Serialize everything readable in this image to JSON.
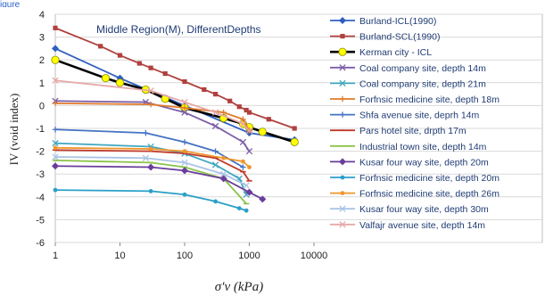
{
  "caption_fragment": "igure",
  "chart_data": {
    "type": "line",
    "title": "Middle Region(M), DifferentDepths",
    "xlabel": "σ′v (kPa)",
    "ylabel": "IV (void index)",
    "x_scale": "log",
    "xlim": [
      1,
      10000
    ],
    "ylim": [
      -6,
      4
    ],
    "x_ticks": [
      "1",
      "10",
      "100",
      "1000",
      "10000"
    ],
    "y_ticks": [
      "4",
      "3",
      "2",
      "1",
      "0",
      "-1",
      "-2",
      "-3",
      "-4",
      "-5",
      "-6"
    ],
    "grid": "horizontal",
    "legend_position": "right",
    "series": [
      {
        "name": "Burland-ICL(1990)",
        "color": "#2f5fbf",
        "marker": "diamond",
        "x": [
          1,
          10,
          100,
          1000,
          5000
        ],
        "y": [
          2.5,
          1.2,
          0.0,
          -1.2,
          -1.5
        ]
      },
      {
        "name": "Burland-SCL(1990)",
        "color": "#b0413e",
        "marker": "square",
        "x": [
          1,
          5,
          10,
          20,
          30,
          50,
          100,
          200,
          300,
          500,
          700,
          900,
          1000,
          2000,
          5000
        ],
        "y": [
          3.4,
          2.6,
          2.2,
          1.85,
          1.65,
          1.4,
          1.05,
          0.7,
          0.5,
          0.2,
          -0.05,
          -0.2,
          -0.3,
          -0.6,
          -1.0
        ]
      },
      {
        "name": "Kerman city - ICL",
        "color": "#000000",
        "marker": "circle-yellow",
        "x": [
          1,
          6,
          10,
          25,
          50,
          100,
          400,
          800,
          1000,
          1600,
          5000
        ],
        "y": [
          2.0,
          1.2,
          1.0,
          0.7,
          0.3,
          -0.1,
          -0.55,
          -0.8,
          -0.95,
          -1.15,
          -1.6
        ]
      },
      {
        "name": "Coal company site, depth 14m",
        "color": "#7b5ea7",
        "marker": "x",
        "x": [
          1,
          25,
          100,
          300,
          800,
          1000
        ],
        "y": [
          0.2,
          0.15,
          -0.3,
          -0.9,
          -1.6,
          -2.0
        ]
      },
      {
        "name": "Coal company site, depth 21m",
        "color": "#3fa7c0",
        "marker": "x",
        "x": [
          1,
          30,
          100,
          300,
          700,
          900
        ],
        "y": [
          -1.65,
          -1.8,
          -2.1,
          -2.6,
          -3.2,
          -3.9
        ]
      },
      {
        "name": "Forfnsic medicine site, depth 18m",
        "color": "#e07b2a",
        "marker": "cross",
        "x": [
          1,
          30,
          100,
          400,
          800,
          1000
        ],
        "y": [
          0.1,
          0.05,
          -0.1,
          -0.3,
          -0.6,
          -1.1
        ]
      },
      {
        "name": "Shfa avenue site, deprh 14m",
        "color": "#4472c4",
        "marker": "cross",
        "x": [
          1,
          25,
          100,
          300,
          800
        ],
        "y": [
          -1.05,
          -1.2,
          -1.6,
          -2.0,
          -2.7
        ]
      },
      {
        "name": "Pars hotel site, drpth 17m",
        "color": "#c0392b",
        "marker": "dash",
        "x": [
          1,
          30,
          100,
          300,
          800,
          1000
        ],
        "y": [
          -1.95,
          -2.0,
          -2.1,
          -2.3,
          -2.9,
          -3.3
        ]
      },
      {
        "name": "Industrial town site, depth 14m",
        "color": "#8bc34a",
        "marker": "dash",
        "x": [
          1,
          30,
          100,
          400,
          900
        ],
        "y": [
          -2.4,
          -2.5,
          -2.7,
          -3.2,
          -4.3
        ]
      },
      {
        "name": "Kusar four way site, depth 20m",
        "color": "#6a3d9a",
        "marker": "diamond",
        "x": [
          1,
          30,
          100,
          400,
          1000,
          1600
        ],
        "y": [
          -2.65,
          -2.7,
          -2.85,
          -3.2,
          -3.8,
          -4.1
        ]
      },
      {
        "name": "Forfnsic medicine site, depth 20m",
        "color": "#2a9fc9",
        "marker": "circle",
        "x": [
          1,
          30,
          100,
          300,
          700,
          900
        ],
        "y": [
          -3.7,
          -3.75,
          -3.9,
          -4.2,
          -4.5,
          -4.6
        ]
      },
      {
        "name": "Forfnsic medicine site, depth 26m",
        "color": "#f0962b",
        "marker": "circle",
        "x": [
          1,
          30,
          100,
          400,
          800,
          1000
        ],
        "y": [
          -1.85,
          -1.9,
          -2.0,
          -2.3,
          -2.45,
          -2.7
        ]
      },
      {
        "name": "Kusar four way site, depth 30m",
        "color": "#aac4e6",
        "marker": "x",
        "x": [
          1,
          25,
          100,
          400,
          900
        ],
        "y": [
          -2.25,
          -2.3,
          -2.5,
          -3.0,
          -3.5
        ]
      },
      {
        "name": "Valfajr avenue site, depth 14m",
        "color": "#e6a8a8",
        "marker": "x",
        "x": [
          1,
          30,
          100,
          300,
          800,
          1000
        ],
        "y": [
          1.1,
          0.65,
          0.15,
          -0.3,
          -0.8,
          -1.1
        ]
      }
    ]
  }
}
